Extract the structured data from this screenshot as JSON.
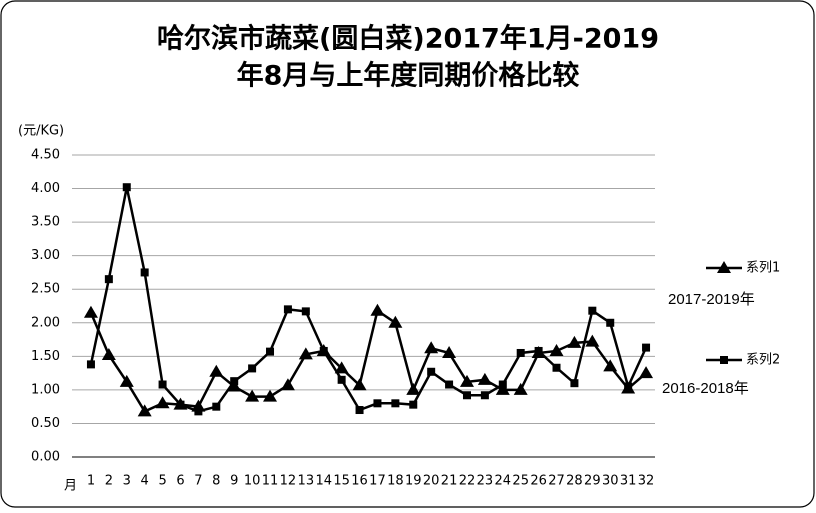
{
  "chart_data": {
    "type": "line",
    "title": [
      "哈尔滨市蔬菜(圆白菜)2017年1月-2019",
      "年8月与上年度同期价格比较"
    ],
    "y_label": "(元/KG)",
    "x_label": "月",
    "categories": [
      "1",
      "2",
      "3",
      "4",
      "5",
      "6",
      "7",
      "8",
      "9",
      "10",
      "11",
      "12",
      "13",
      "14",
      "15",
      "16",
      "17",
      "18",
      "19",
      "20",
      "21",
      "22",
      "23",
      "24",
      "25",
      "26",
      "27",
      "28",
      "29",
      "30",
      "31",
      "32"
    ],
    "series": [
      {
        "name": "系列1",
        "color": "#000000",
        "marker": "triangle",
        "values": [
          2.15,
          1.52,
          1.12,
          0.68,
          0.8,
          0.78,
          0.75,
          1.27,
          1.05,
          0.9,
          0.9,
          1.07,
          1.53,
          1.58,
          1.32,
          1.07,
          2.18,
          2.0,
          1.0,
          1.62,
          1.55,
          1.12,
          1.15,
          1.0,
          1.0,
          1.55,
          1.58,
          1.7,
          1.72,
          1.35,
          1.02,
          1.25
        ]
      },
      {
        "name": "系列2",
        "color": "#000000",
        "marker": "square",
        "values": [
          1.38,
          2.65,
          4.02,
          2.75,
          1.08,
          0.78,
          0.68,
          0.75,
          1.13,
          1.32,
          1.57,
          2.2,
          2.17,
          1.58,
          1.15,
          0.7,
          0.8,
          0.8,
          0.78,
          1.27,
          1.08,
          0.92,
          0.92,
          1.08,
          1.55,
          1.58,
          1.33,
          1.1,
          2.18,
          2.0,
          1.05,
          1.63
        ]
      }
    ],
    "annotations": [
      "2017-2019年",
      "2016-2018年"
    ],
    "ylim": [
      0,
      4.5
    ],
    "yticks": [
      {
        "value": 0,
        "label": "0.00"
      },
      {
        "value": 0.5,
        "label": "0.50"
      },
      {
        "value": 1,
        "label": "1.00"
      },
      {
        "value": 1.5,
        "label": "1.50"
      },
      {
        "value": 2,
        "label": "2.00"
      },
      {
        "value": 2.5,
        "label": "2.50"
      },
      {
        "value": 3,
        "label": "3.00"
      },
      {
        "value": 3.5,
        "label": "3.50"
      },
      {
        "value": 4,
        "label": "4.00"
      },
      {
        "value": 4.5,
        "label": "4.50"
      }
    ],
    "grid": true
  }
}
